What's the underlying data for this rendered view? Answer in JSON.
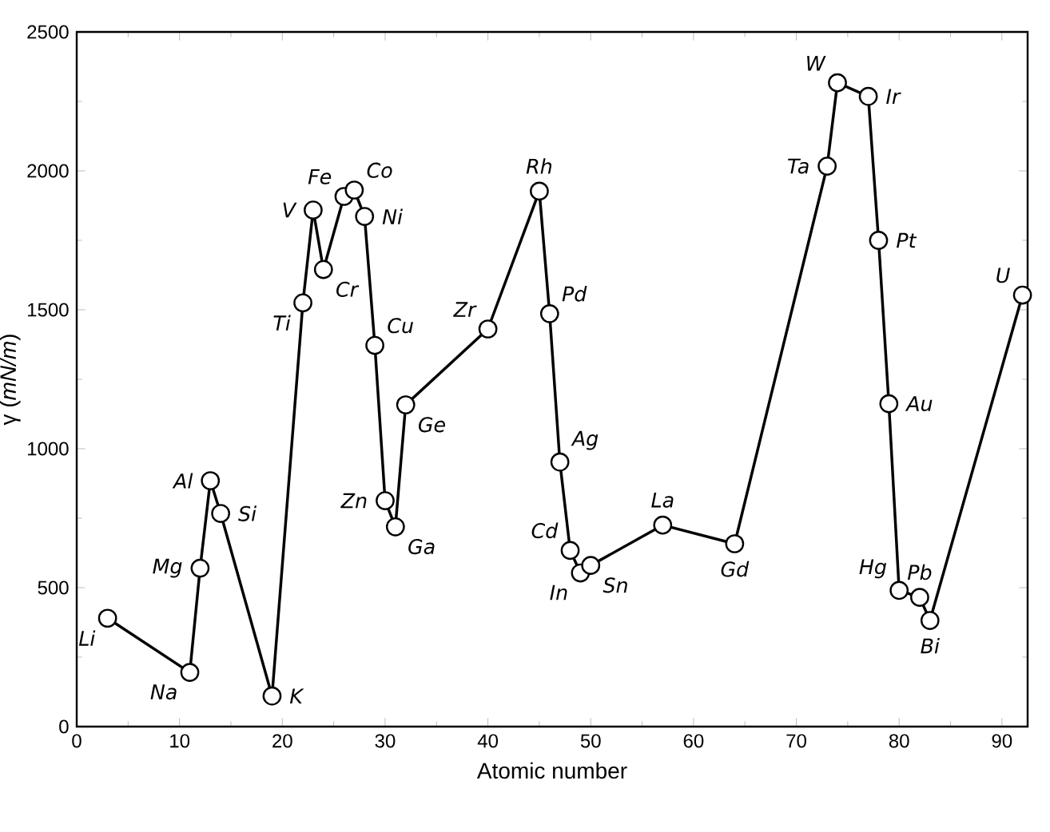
{
  "chart_data": {
    "type": "line",
    "xlabel": "Atomic number",
    "ylabel": "γ (*mN/m*)",
    "x": [
      3,
      11,
      12,
      13,
      14,
      19,
      22,
      23,
      24,
      26,
      27,
      28,
      29,
      30,
      31,
      32,
      40,
      45,
      46,
      47,
      48,
      49,
      50,
      57,
      64,
      73,
      74,
      77,
      78,
      79,
      80,
      82,
      83,
      92
    ],
    "series": [
      {
        "color": "#000000",
        "values": [
          390,
          195,
          570,
          885,
          767,
          110,
          1525,
          1859,
          1645,
          1908,
          1931,
          1836,
          1372,
          813,
          719,
          1158,
          1431,
          1927,
          1486,
          952,
          634,
          553,
          580,
          725,
          658,
          2017,
          2317,
          2268,
          1750,
          1162,
          490,
          465,
          382,
          1553
        ]
      }
    ],
    "marker": "circle",
    "line_style": "solid",
    "xlim": [
      0,
      92.5
    ],
    "ylim": [
      0,
      2500
    ],
    "xticks": [
      0,
      10,
      20,
      30,
      40,
      50,
      60,
      70,
      80,
      90
    ],
    "yticks": [
      0,
      500,
      1000,
      1500,
      2000,
      2500
    ],
    "annotations": [
      {
        "text": "Li",
        "x": 3,
        "y": 390
      },
      {
        "text": "Na",
        "x": 11,
        "y": 195
      },
      {
        "text": "Mg",
        "x": 12,
        "y": 570
      },
      {
        "text": "Al",
        "x": 13,
        "y": 885
      },
      {
        "text": "Si",
        "x": 14,
        "y": 767
      },
      {
        "text": "K",
        "x": 19,
        "y": 110
      },
      {
        "text": "Ti",
        "x": 22,
        "y": 1525
      },
      {
        "text": "V",
        "x": 23,
        "y": 1859
      },
      {
        "text": "Cr",
        "x": 24,
        "y": 1645
      },
      {
        "text": "Fe",
        "x": 26,
        "y": 1908
      },
      {
        "text": "Co",
        "x": 27,
        "y": 1931
      },
      {
        "text": "Ni",
        "x": 28,
        "y": 1836
      },
      {
        "text": "Cu",
        "x": 29,
        "y": 1372
      },
      {
        "text": "Zn",
        "x": 30,
        "y": 813
      },
      {
        "text": "Ga",
        "x": 31,
        "y": 719
      },
      {
        "text": "Ge",
        "x": 32,
        "y": 1158
      },
      {
        "text": "Zr",
        "x": 40,
        "y": 1431
      },
      {
        "text": "Rh",
        "x": 45,
        "y": 1927
      },
      {
        "text": "Pd",
        "x": 46,
        "y": 1486
      },
      {
        "text": "Ag",
        "x": 47,
        "y": 952
      },
      {
        "text": "Cd",
        "x": 48,
        "y": 634
      },
      {
        "text": "In",
        "x": 49,
        "y": 553
      },
      {
        "text": "Sn",
        "x": 50,
        "y": 580
      },
      {
        "text": "La",
        "x": 57,
        "y": 725
      },
      {
        "text": "Gd",
        "x": 64,
        "y": 658
      },
      {
        "text": "Ta",
        "x": 73,
        "y": 2017
      },
      {
        "text": "W",
        "x": 74,
        "y": 2317
      },
      {
        "text": "Ir",
        "x": 77,
        "y": 2268
      },
      {
        "text": "Pt",
        "x": 78,
        "y": 1750
      },
      {
        "text": "Au",
        "x": 79,
        "y": 1162
      },
      {
        "text": "Hg",
        "x": 80,
        "y": 490
      },
      {
        "text": "Pb",
        "x": 82,
        "y": 465
      },
      {
        "text": "Bi",
        "x": 83,
        "y": 382
      },
      {
        "text": "U",
        "x": 92,
        "y": 1553
      }
    ]
  }
}
